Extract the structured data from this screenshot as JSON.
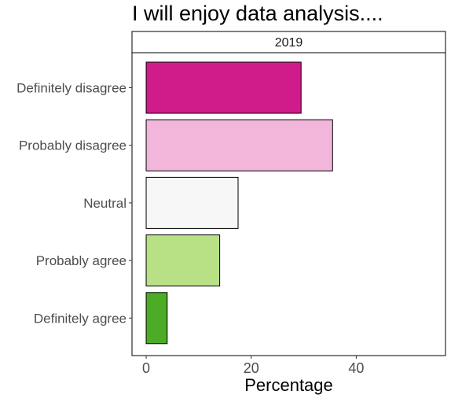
{
  "chart_data": {
    "type": "bar",
    "orientation": "horizontal",
    "title": "I will enjoy data analysis....",
    "facet_label": "2019",
    "xlabel": "Percentage",
    "ylabel": "",
    "categories": [
      "Definitely disagree",
      "Probably disagree",
      "Neutral",
      "Probably agree",
      "Definitely agree"
    ],
    "values": [
      29.5,
      35.5,
      17.5,
      14,
      4
    ],
    "colors": [
      "#d01c8b",
      "#f1b6da",
      "#f7f7f7",
      "#b8e186",
      "#4dac26"
    ],
    "xlim": [
      -2.7,
      57
    ],
    "xticks": [
      0,
      20,
      40
    ],
    "grid": false,
    "legend": "none"
  }
}
